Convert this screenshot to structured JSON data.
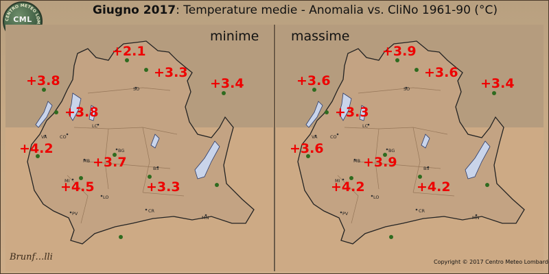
{
  "title": {
    "month": "Giugno 2017",
    "rest": ": Temperature medie - Anomalia vs. CliNo 1961-90 (°C)"
  },
  "logo": {
    "text": "CML",
    "ring_text": "CENTRO METEO LOMBARDO"
  },
  "panels": [
    {
      "label": "minime",
      "values": [
        "+2.1",
        "+3.3",
        "+3.8",
        "+3.4",
        "+3.8",
        "+4.2",
        "+3.7",
        "+4.5",
        "+3.3"
      ]
    },
    {
      "label": "massime",
      "values": [
        "+3.9",
        "+3.6",
        "+3.6",
        "+3.4",
        "+3.3",
        "+3.6",
        "+3.9",
        "+4.2",
        "+4.2"
      ]
    }
  ],
  "cities": [
    "SO",
    "LC",
    "CO",
    "VA",
    "BG",
    "MB",
    "BS",
    "MI",
    "LO",
    "CR",
    "PV",
    "MN"
  ],
  "colors": {
    "anomaly_text": "#ee0000",
    "station_dot": "#2f6b1f",
    "lake": "#c9d4ea",
    "border": "#222222"
  },
  "signature": "Brunf…lli",
  "copyright": "Copyright © 2017 Centro Meteo Lombardo"
}
